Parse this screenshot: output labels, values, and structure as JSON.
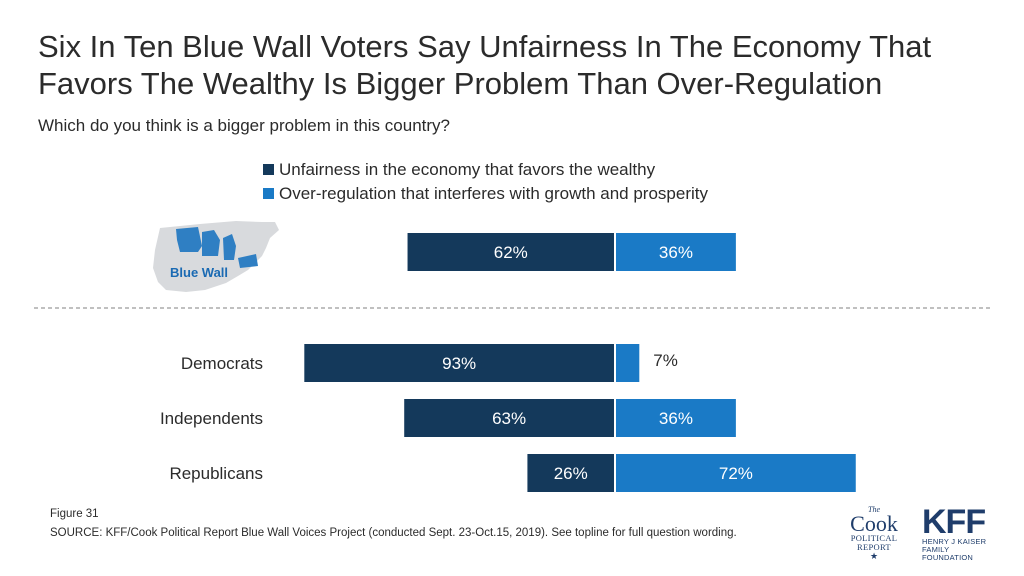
{
  "title": "Six In Ten Blue Wall Voters Say Unfairness In The Economy That Favors The Wealthy Is Bigger Problem Than Over-Regulation",
  "subtitle": "Which do you think is a bigger problem in this country?",
  "figure_label": "Figure 31",
  "source": "SOURCE: KFF/Cook Political Report Blue Wall Voices Project (conducted Sept. 23-Oct.15, 2019). See topline for full question wording.",
  "map_label": "Blue Wall",
  "logos": {
    "cook_the": "The",
    "cook_name": "Cook",
    "cook_political": "POLITICAL",
    "cook_report": "REPORT",
    "kff_name": "KFF",
    "kff_line1": "HENRY J KAISER",
    "kff_line2": "FAMILY FOUNDATION"
  },
  "colors": {
    "unfairness": "#14395b",
    "overregulation": "#1a7ac6",
    "map_gray": "#d8dadd",
    "map_blue": "#2f7fc3"
  },
  "icons": [
    "us-map-icon",
    "star-icon"
  ],
  "chart_data": {
    "type": "bar",
    "orientation": "horizontal-diverging",
    "categories": [
      "Blue Wall",
      "Democrats",
      "Independents",
      "Republicans"
    ],
    "series": [
      {
        "name": "Unfairness in the economy that favors the wealthy",
        "values": [
          62,
          93,
          63,
          26
        ],
        "labels": [
          "62%",
          "93%",
          "63%",
          "26%"
        ]
      },
      {
        "name": "Over-regulation that interferes with growth and prosperity",
        "values": [
          36,
          7,
          36,
          72
        ],
        "labels": [
          "36%",
          "7%",
          "36%",
          "72%"
        ]
      }
    ],
    "unit": "%",
    "legend": "top",
    "grid": false
  }
}
